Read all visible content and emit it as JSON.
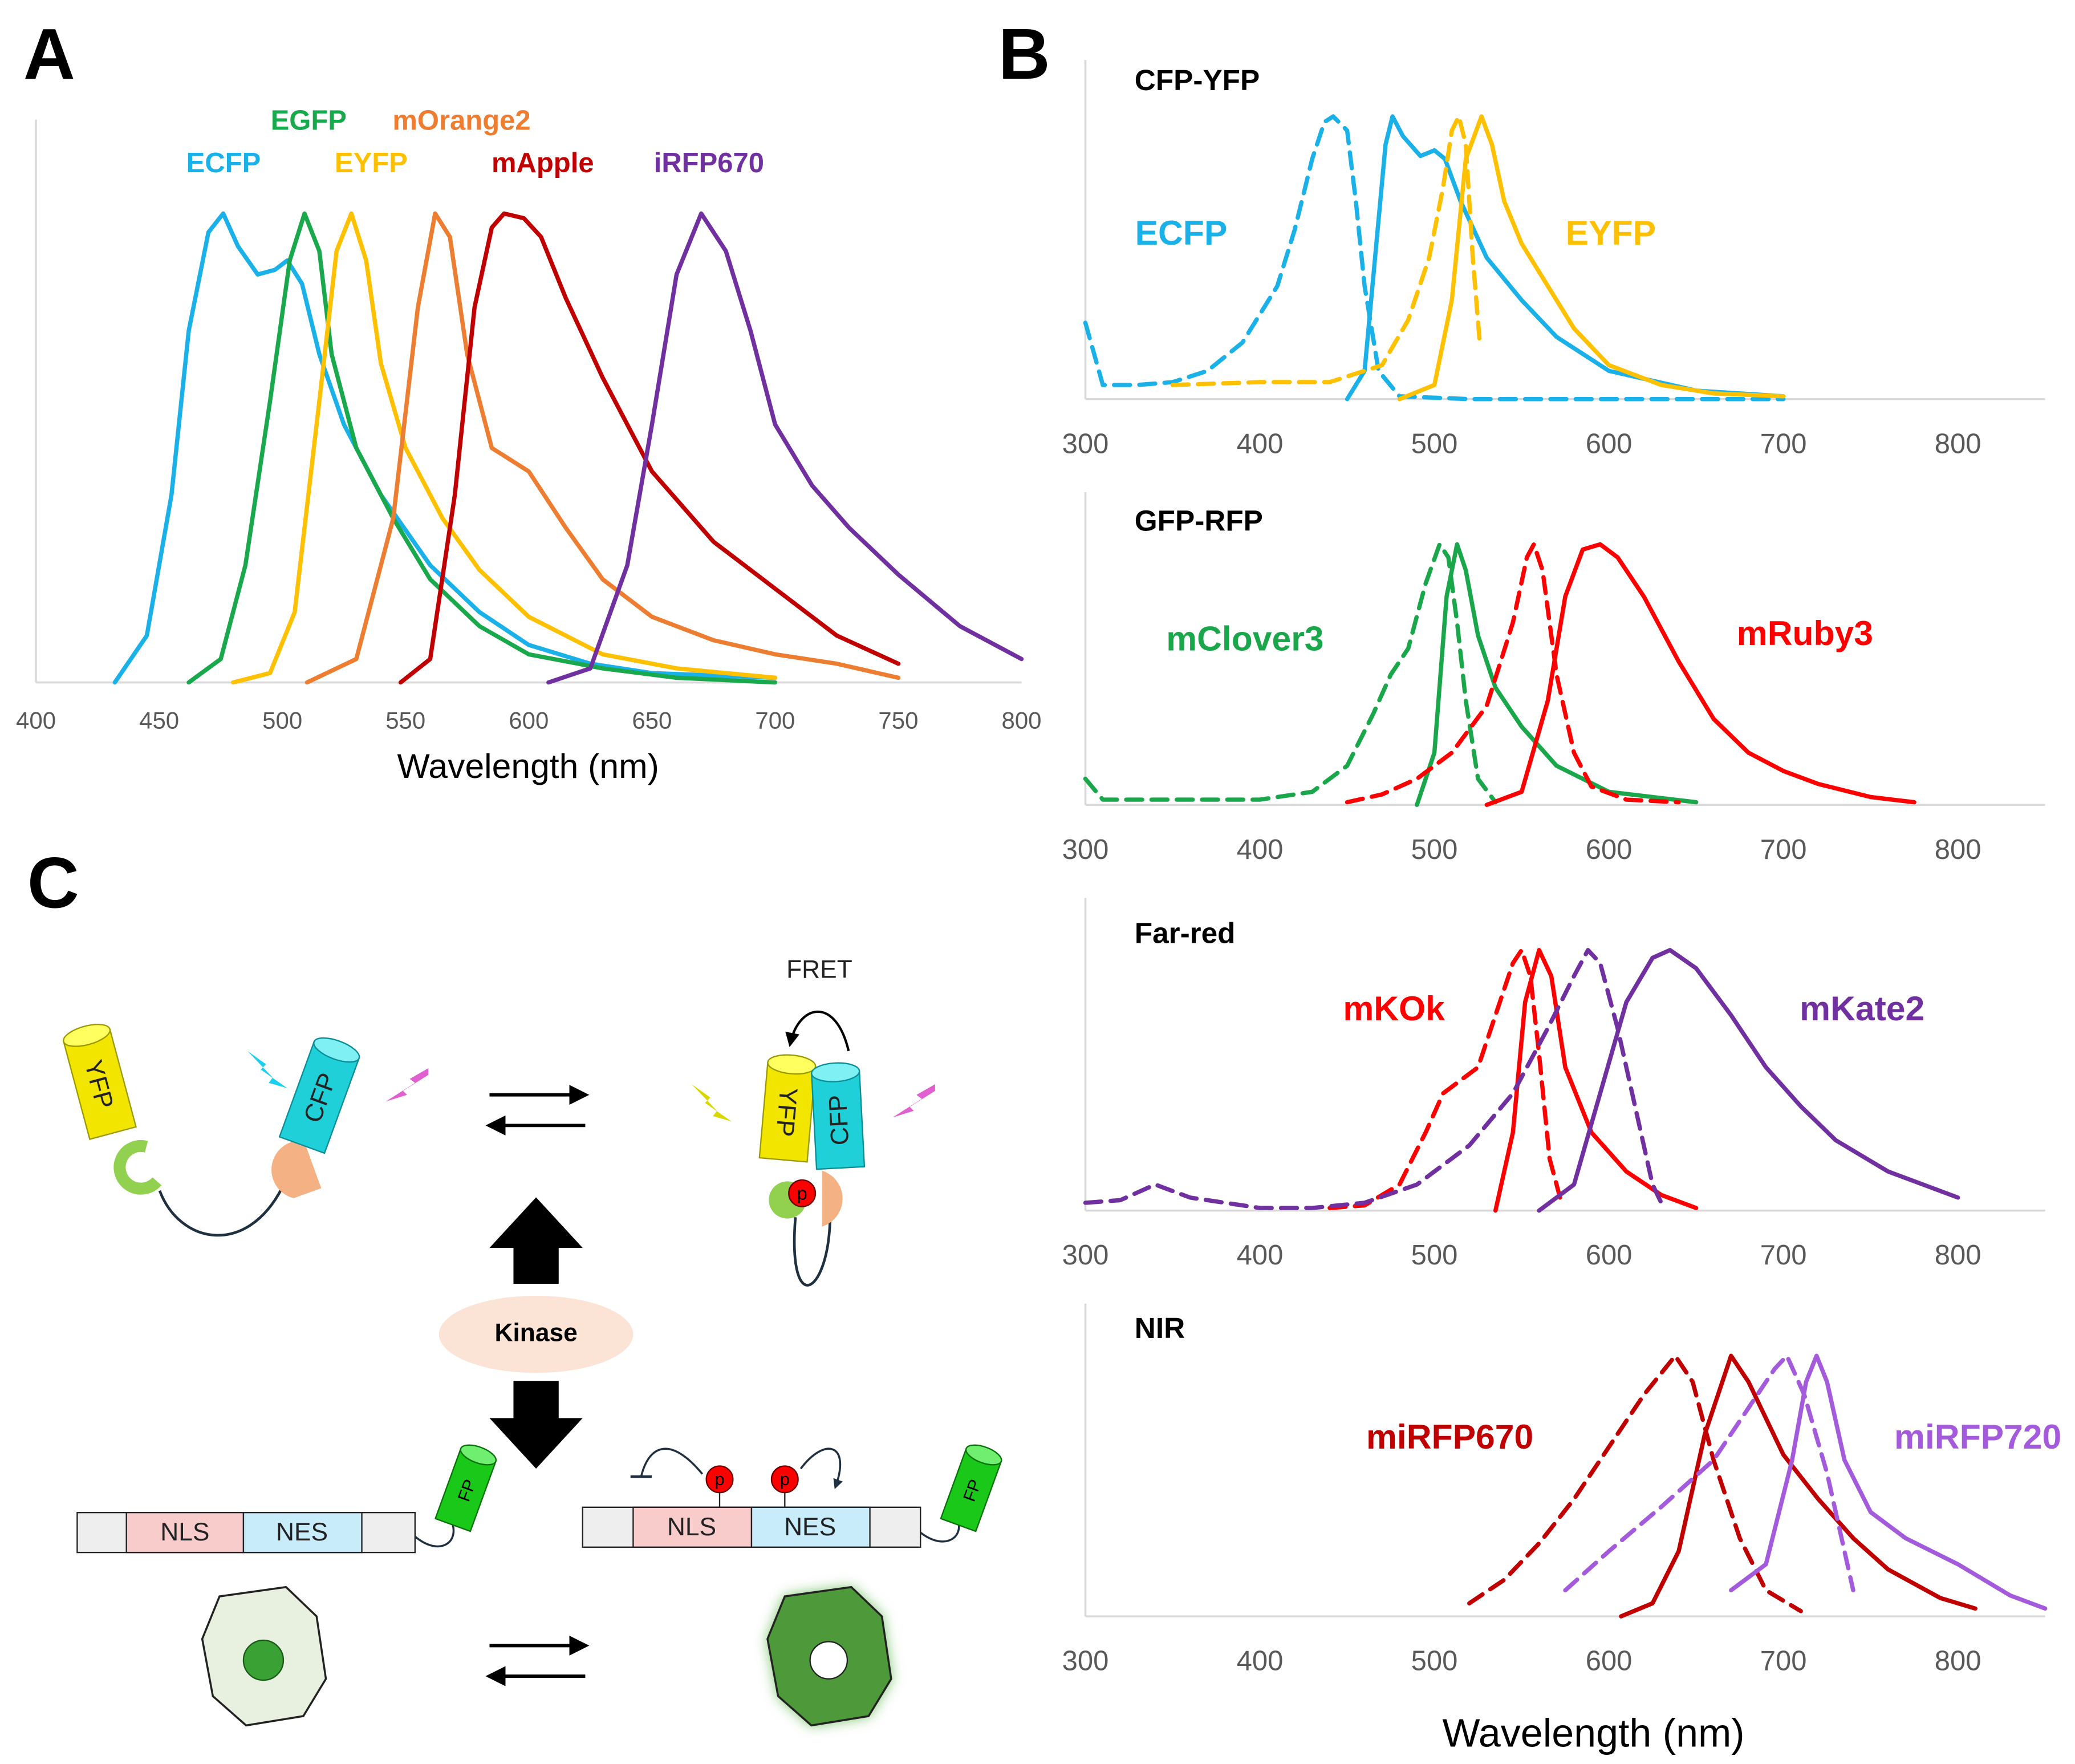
{
  "panel_labels": [
    "A",
    "B",
    "C"
  ],
  "diagram": {
    "fret": "FRET",
    "kinase": "Kinase",
    "acceptor": "YFP",
    "donor": "CFP",
    "nls": "NLS",
    "nes": "NES",
    "fp": "FP",
    "phospho": "p"
  },
  "chart_data": [
    {
      "type": "line",
      "x_label": "Wavelength (nm)",
      "xlim": [
        400,
        800
      ],
      "xticks": [
        400,
        450,
        500,
        550,
        600,
        650,
        700,
        750,
        800
      ],
      "ylim": [
        0,
        1.2
      ],
      "series": [
        {
          "name": "ECFP",
          "color": "#1ab0e8",
          "x": [
            432,
            445,
            455,
            462,
            470,
            476,
            482,
            490,
            497,
            502,
            508,
            515,
            525,
            540,
            560,
            580,
            600,
            625,
            650,
            700
          ],
          "values": [
            0,
            0.1,
            0.4,
            0.75,
            0.96,
            1.0,
            0.93,
            0.87,
            0.88,
            0.9,
            0.85,
            0.7,
            0.55,
            0.4,
            0.25,
            0.15,
            0.08,
            0.04,
            0.02,
            0.01
          ]
        },
        {
          "name": "EGFP",
          "color": "#19a84c",
          "x": [
            462,
            475,
            485,
            495,
            503,
            509,
            515,
            520,
            530,
            545,
            560,
            580,
            600,
            630,
            660,
            700
          ],
          "values": [
            0,
            0.05,
            0.25,
            0.6,
            0.9,
            1.0,
            0.92,
            0.7,
            0.5,
            0.35,
            0.22,
            0.12,
            0.06,
            0.03,
            0.01,
            0
          ]
        },
        {
          "name": "EYFP",
          "color": "#ffc000",
          "x": [
            480,
            495,
            505,
            515,
            522,
            528,
            534,
            540,
            550,
            565,
            580,
            600,
            630,
            660,
            700
          ],
          "values": [
            0,
            0.02,
            0.15,
            0.6,
            0.92,
            1.0,
            0.9,
            0.68,
            0.5,
            0.35,
            0.24,
            0.14,
            0.06,
            0.03,
            0.01
          ]
        },
        {
          "name": "mOrange2",
          "color": "#ed7d31",
          "x": [
            510,
            530,
            545,
            555,
            562,
            568,
            575,
            585,
            600,
            615,
            630,
            650,
            675,
            700,
            725,
            750
          ],
          "values": [
            0,
            0.05,
            0.35,
            0.8,
            1.0,
            0.95,
            0.7,
            0.5,
            0.45,
            0.33,
            0.22,
            0.14,
            0.09,
            0.06,
            0.04,
            0.01
          ]
        },
        {
          "name": "mApple",
          "color": "#c00000",
          "x": [
            548,
            560,
            570,
            578,
            585,
            590,
            598,
            605,
            615,
            630,
            650,
            675,
            700,
            725,
            750
          ],
          "values": [
            0,
            0.05,
            0.4,
            0.8,
            0.97,
            1.0,
            0.99,
            0.95,
            0.82,
            0.65,
            0.45,
            0.3,
            0.2,
            0.1,
            0.04
          ]
        },
        {
          "name": "iRFP670",
          "color": "#7030a0",
          "x": [
            608,
            625,
            640,
            650,
            660,
            670,
            680,
            690,
            700,
            715,
            730,
            750,
            775,
            800
          ],
          "values": [
            0,
            0.03,
            0.25,
            0.55,
            0.87,
            1.0,
            0.92,
            0.75,
            0.55,
            0.42,
            0.33,
            0.23,
            0.12,
            0.05
          ]
        }
      ]
    },
    {
      "type": "line",
      "title": "CFP-YFP",
      "xlim": [
        300,
        850
      ],
      "xticks": [
        300,
        400,
        500,
        600,
        700,
        800
      ],
      "ylim": [
        0,
        1.2
      ],
      "series": [
        {
          "name": "ECFP",
          "color": "#1ab0e8",
          "lines": [
            {
              "dash": true,
              "x": [
                300,
                310,
                330,
                350,
                370,
                390,
                410,
                420,
                430,
                437,
                442,
                450,
                455,
                460,
                468,
                480,
                520,
                700
              ],
              "values": [
                0.27,
                0.05,
                0.05,
                0.06,
                0.1,
                0.2,
                0.4,
                0.6,
                0.85,
                0.98,
                1.0,
                0.95,
                0.7,
                0.4,
                0.1,
                0.01,
                0,
                0
              ]
            },
            {
              "dash": false,
              "x": [
                450,
                460,
                466,
                472,
                476,
                482,
                492,
                500,
                506,
                515,
                530,
                550,
                570,
                600,
                650,
                700
              ],
              "values": [
                0,
                0.1,
                0.5,
                0.9,
                1.0,
                0.93,
                0.86,
                0.88,
                0.85,
                0.7,
                0.5,
                0.35,
                0.22,
                0.1,
                0.03,
                0.01
              ]
            }
          ]
        },
        {
          "name": "EYFP",
          "color": "#ffc000",
          "lines": [
            {
              "dash": true,
              "x": [
                350,
                400,
                440,
                470,
                485,
                497,
                505,
                510,
                514,
                518,
                522,
                526
              ],
              "values": [
                0.05,
                0.06,
                0.06,
                0.12,
                0.28,
                0.5,
                0.75,
                0.95,
                1.0,
                0.9,
                0.5,
                0.2
              ]
            },
            {
              "dash": false,
              "x": [
                480,
                500,
                510,
                518,
                527,
                533,
                540,
                550,
                565,
                580,
                600,
                630,
                660,
                700
              ],
              "values": [
                0,
                0.05,
                0.35,
                0.85,
                1.0,
                0.9,
                0.7,
                0.55,
                0.4,
                0.25,
                0.12,
                0.05,
                0.02,
                0.01
              ]
            }
          ]
        }
      ]
    },
    {
      "type": "line",
      "title": "GFP-RFP",
      "xlim": [
        300,
        850
      ],
      "xticks": [
        300,
        400,
        500,
        600,
        700,
        800
      ],
      "ylim": [
        0,
        1.2
      ],
      "series": [
        {
          "name": "mClover3",
          "color": "#1aa64a",
          "lines": [
            {
              "dash": true,
              "x": [
                300,
                310,
                350,
                400,
                430,
                450,
                465,
                475,
                485,
                495,
                503,
                508,
                513,
                518,
                525,
                535
              ],
              "values": [
                0.1,
                0.02,
                0.02,
                0.02,
                0.05,
                0.15,
                0.35,
                0.5,
                0.6,
                0.85,
                1.0,
                0.95,
                0.7,
                0.4,
                0.1,
                0.01
              ]
            },
            {
              "dash": false,
              "x": [
                490,
                500,
                507,
                513,
                518,
                525,
                535,
                550,
                570,
                600,
                650
              ],
              "values": [
                0,
                0.2,
                0.8,
                1.0,
                0.9,
                0.65,
                0.45,
                0.3,
                0.15,
                0.05,
                0.01
              ]
            }
          ]
        },
        {
          "name": "mRuby3",
          "color": "#ff0000",
          "lines": [
            {
              "dash": true,
              "x": [
                450,
                470,
                490,
                510,
                530,
                545,
                553,
                557,
                562,
                570,
                580,
                590,
                610,
                640
              ],
              "values": [
                0.01,
                0.04,
                0.1,
                0.2,
                0.38,
                0.7,
                0.95,
                1.0,
                0.9,
                0.5,
                0.2,
                0.07,
                0.02,
                0.01
              ]
            },
            {
              "dash": false,
              "x": [
                530,
                550,
                565,
                575,
                585,
                595,
                605,
                620,
                640,
                660,
                680,
                700,
                720,
                750,
                775
              ],
              "values": [
                0,
                0.05,
                0.4,
                0.8,
                0.98,
                1.0,
                0.95,
                0.8,
                0.55,
                0.33,
                0.2,
                0.13,
                0.08,
                0.03,
                0.01
              ]
            }
          ]
        }
      ]
    },
    {
      "type": "line",
      "title": "Far-red",
      "xlim": [
        300,
        850
      ],
      "xticks": [
        300,
        400,
        500,
        600,
        700,
        800
      ],
      "ylim": [
        0,
        1.2
      ],
      "series": [
        {
          "name": "mKOk",
          "color": "#ff0000",
          "lines": [
            {
              "dash": true,
              "x": [
                440,
                460,
                480,
                495,
                505,
                515,
                525,
                535,
                545,
                550,
                555,
                560,
                566,
                572
              ],
              "values": [
                0.01,
                0.02,
                0.1,
                0.3,
                0.45,
                0.5,
                0.55,
                0.75,
                0.95,
                1.0,
                0.9,
                0.6,
                0.2,
                0.05
              ]
            },
            {
              "dash": false,
              "x": [
                535,
                545,
                552,
                560,
                567,
                575,
                590,
                610,
                630,
                650
              ],
              "values": [
                0,
                0.3,
                0.8,
                1.0,
                0.9,
                0.55,
                0.3,
                0.15,
                0.06,
                0.01
              ]
            }
          ]
        },
        {
          "name": "mKate2",
          "color": "#7030a0",
          "lines": [
            {
              "dash": true,
              "x": [
                300,
                320,
                340,
                360,
                400,
                430,
                460,
                490,
                520,
                545,
                565,
                580,
                588,
                595,
                605,
                615,
                625,
                630
              ],
              "values": [
                0.03,
                0.04,
                0.1,
                0.05,
                0.01,
                0.01,
                0.03,
                0.1,
                0.25,
                0.45,
                0.7,
                0.9,
                1.0,
                0.95,
                0.7,
                0.4,
                0.1,
                0.03
              ]
            },
            {
              "dash": false,
              "x": [
                560,
                580,
                595,
                610,
                625,
                635,
                650,
                670,
                690,
                710,
                730,
                760,
                800
              ],
              "values": [
                0,
                0.1,
                0.45,
                0.8,
                0.97,
                1.0,
                0.93,
                0.75,
                0.55,
                0.4,
                0.27,
                0.15,
                0.05
              ]
            }
          ]
        }
      ]
    },
    {
      "type": "line",
      "title": "NIR",
      "x_label": "Wavelength (nm)",
      "xlim": [
        300,
        850
      ],
      "xticks": [
        300,
        400,
        500,
        600,
        700,
        800
      ],
      "ylim": [
        0,
        1.2
      ],
      "series": [
        {
          "name": "miRFP670",
          "color": "#c00000",
          "lines": [
            {
              "dash": true,
              "x": [
                520,
                540,
                560,
                580,
                600,
                620,
                638,
                648,
                660,
                675,
                690,
                710
              ],
              "values": [
                0.05,
                0.14,
                0.28,
                0.45,
                0.65,
                0.85,
                1.0,
                0.9,
                0.6,
                0.3,
                0.1,
                0.02
              ]
            },
            {
              "dash": false,
              "x": [
                607,
                625,
                640,
                655,
                670,
                680,
                700,
                720,
                740,
                760,
                790,
                810
              ],
              "values": [
                0,
                0.05,
                0.25,
                0.7,
                1.0,
                0.9,
                0.62,
                0.45,
                0.3,
                0.18,
                0.07,
                0.03
              ]
            }
          ]
        },
        {
          "name": "miRFP720",
          "color": "#a35bdb",
          "lines": [
            {
              "dash": true,
              "x": [
                575,
                600,
                630,
                660,
                680,
                695,
                702,
                712,
                725,
                735,
                740
              ],
              "values": [
                0.1,
                0.25,
                0.42,
                0.6,
                0.8,
                0.95,
                1.0,
                0.85,
                0.55,
                0.25,
                0.1
              ]
            },
            {
              "dash": false,
              "x": [
                670,
                690,
                705,
                713,
                719,
                725,
                735,
                750,
                770,
                800,
                830,
                850
              ],
              "values": [
                0.1,
                0.2,
                0.6,
                0.9,
                1.0,
                0.9,
                0.6,
                0.4,
                0.3,
                0.2,
                0.08,
                0.03
              ]
            }
          ]
        }
      ]
    }
  ]
}
